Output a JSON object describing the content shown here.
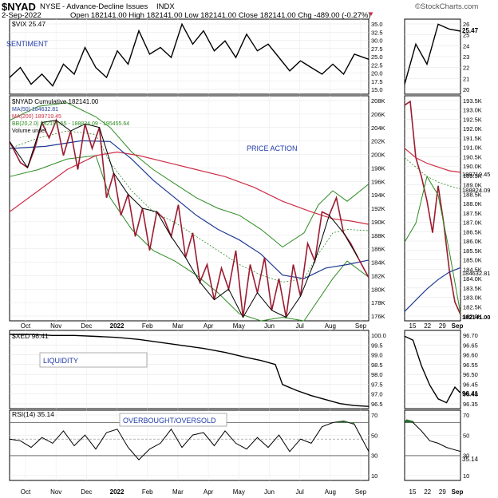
{
  "header": {
    "symbol": "$NYAD",
    "exchange": "NYSE",
    "description": "- Advance-Decline Issues",
    "type": "INDX",
    "watermark": "©StockCharts.com",
    "date": "2-Sep-2022",
    "ohlc": "Open 182141.00  High 182141.00  Low 182141.00  Close 182141.00  Chg -489.00 (-0.27%)",
    "down_arrow": "▼"
  },
  "colors": {
    "price": "#000000",
    "ma50": "#1f3a93",
    "ma200": "#cc2e45",
    "bb": "#2e8b22",
    "mid": "#2e8b22",
    "rsi_fill": "#2e6b2e",
    "label_blue": "#1f3aa8"
  },
  "panels": {
    "vix": {
      "legend": "$VIX 25.47",
      "annotation": "SENTIMENT",
      "last": "25.47"
    },
    "main": {
      "legend": {
        "title": "$NYAD Cumulative 182141.00",
        "ma50": "MA(50) 184632.81",
        "ma200": "MA(200) 189719.45",
        "bb": "BB(20,2.0) 182191.55 - 188824.09 - 195455.64",
        "volume": "Volume undef"
      },
      "annotation": "PRICE ACTION",
      "zoom_tags": {
        "upper": "189719.45",
        "mid": "188824.09",
        "ma50": "184632.81",
        "close": "182141.00"
      }
    },
    "xed": {
      "legend": "$XED 96.41",
      "annotation": "LIQUIDITY",
      "last": "96.41"
    },
    "rsi": {
      "legend": "RSI(14) 35.14",
      "annotation": "OVERBOUGHT/OVERSOLD",
      "last": "35.14"
    }
  },
  "axes": {
    "months": [
      "Oct",
      "Nov",
      "Dec",
      "2022",
      "Feb",
      "Mar",
      "Apr",
      "May",
      "Jun",
      "Jul",
      "Aug",
      "Sep"
    ],
    "zoom_x": [
      "15",
      "22",
      "29",
      "Sep"
    ],
    "vix_ticks": [
      "35.0",
      "32.5",
      "30.0",
      "27.5",
      "25.0",
      "22.5",
      "20.0",
      "17.5",
      "15.0"
    ],
    "vix_zoom_ticks": [
      "26",
      "25",
      "24",
      "23",
      "22",
      "21",
      "20"
    ],
    "main_ticks": [
      "208K",
      "206K",
      "204K",
      "202K",
      "200K",
      "198K",
      "196K",
      "194K",
      "192K",
      "190K",
      "188K",
      "186K",
      "184K",
      "182K",
      "180K",
      "178K",
      "176K"
    ],
    "main_zoom_ticks": [
      "193.5K",
      "193.0K",
      "192.5K",
      "192.0K",
      "191.5K",
      "191.0K",
      "190.5K",
      "190.0K",
      "189.5K",
      "189.0K",
      "188.5K",
      "188.0K",
      "187.5K",
      "187.0K",
      "186.5K",
      "186.0K",
      "185.5K",
      "185.0K",
      "184.5K",
      "184.0K",
      "183.5K",
      "183.0K",
      "182.5K",
      "182.0K"
    ],
    "xed_ticks": [
      "100.0",
      "99.5",
      "99.0",
      "98.5",
      "98.0",
      "97.5",
      "97.0",
      "96.5"
    ],
    "xed_zoom_ticks": [
      "96.70",
      "96.65",
      "96.60",
      "96.55",
      "96.50",
      "96.45",
      "96.40",
      "96.35"
    ],
    "rsi_ticks": [
      "70",
      "50",
      "30",
      "10"
    ],
    "rsi_zoom_ticks": [
      "70",
      "50",
      "30",
      "10"
    ]
  },
  "chart_data": [
    {
      "panel": "vix",
      "type": "line",
      "title": "$VIX",
      "ylim": [
        15,
        37.5
      ],
      "x": [
        0,
        3,
        6,
        9,
        12,
        15,
        18,
        21,
        24,
        27,
        30,
        33,
        36,
        39,
        42,
        45,
        48,
        51,
        54,
        57,
        60,
        63,
        66,
        69,
        72,
        75,
        78,
        81,
        84,
        87,
        90,
        93,
        96,
        100
      ],
      "values": [
        20,
        23,
        18,
        21,
        17.5,
        24,
        21,
        29,
        23,
        20,
        28,
        24,
        34,
        27,
        29,
        26,
        36,
        30,
        34,
        28,
        31,
        26,
        33,
        28,
        30,
        26,
        22,
        25,
        23,
        21,
        24,
        21,
        27,
        25.47
      ]
    },
    {
      "panel": "main",
      "type": "line",
      "title": "$NYAD Cumulative",
      "ylim": [
        176000,
        208000
      ],
      "series": [
        {
          "name": "$NYAD",
          "x": [
            0,
            3,
            5,
            7,
            9,
            11,
            13,
            15,
            17,
            19,
            21,
            23,
            25,
            27,
            29,
            31,
            33,
            35,
            37,
            39,
            41,
            43,
            45,
            47,
            49,
            51,
            53,
            55,
            57,
            59,
            61,
            63,
            65,
            67,
            69,
            71,
            73,
            75,
            77,
            79,
            81,
            83,
            85,
            87,
            89,
            91,
            93,
            95,
            97,
            100
          ],
          "values": [
            201500,
            198500,
            197800,
            200500,
            204200,
            202000,
            204500,
            199500,
            203000,
            197500,
            204000,
            200500,
            203500,
            193500,
            197000,
            191000,
            194000,
            188000,
            192000,
            186000,
            191500,
            190500,
            188000,
            192500,
            185000,
            188500,
            181500,
            184000,
            179000,
            183500,
            180500,
            186000,
            176500,
            184000,
            180000,
            185000,
            177500,
            182000,
            176500,
            184000,
            179500,
            187000,
            184500,
            191500,
            191000,
            193500,
            188500,
            187000,
            185000,
            182141
          ]
        },
        {
          "name": "MA(50)",
          "x": [
            0,
            10,
            20,
            28,
            34,
            40,
            46,
            52,
            58,
            64,
            70,
            76,
            82,
            88,
            94,
            100
          ],
          "values": [
            200500,
            200800,
            201600,
            201500,
            199000,
            196000,
            193500,
            191000,
            189000,
            187500,
            185500,
            182500,
            182000,
            183500,
            184000,
            184632.81
          ]
        },
        {
          "name": "MA(200)",
          "x": [
            0,
            8,
            16,
            24,
            30,
            36,
            44,
            52,
            60,
            68,
            76,
            84,
            90,
            95,
            100
          ],
          "values": [
            191500,
            194500,
            197500,
            199500,
            200000,
            199500,
            198500,
            197500,
            196500,
            195000,
            193000,
            191500,
            190500,
            190200,
            189719.45
          ]
        }
      ]
    },
    {
      "panel": "xed",
      "type": "line",
      "title": "$XED",
      "ylim": [
        96.3,
        100.2
      ],
      "x": [
        0,
        6,
        12,
        18,
        24,
        30,
        36,
        42,
        48,
        54,
        60,
        66,
        70,
        74,
        76,
        80,
        84,
        88,
        92,
        96,
        100
      ],
      "values": [
        100.0,
        100.0,
        99.95,
        99.95,
        99.9,
        99.85,
        99.75,
        99.6,
        99.45,
        99.3,
        99.1,
        98.85,
        98.7,
        98.5,
        97.5,
        97.2,
        96.95,
        96.75,
        96.55,
        96.45,
        96.41
      ]
    },
    {
      "panel": "rsi",
      "type": "line",
      "title": "RSI(14)",
      "ylim": [
        0,
        85
      ],
      "x": [
        0,
        3,
        6,
        9,
        12,
        15,
        18,
        21,
        24,
        27,
        30,
        33,
        36,
        39,
        42,
        45,
        48,
        51,
        54,
        57,
        60,
        63,
        66,
        69,
        72,
        75,
        78,
        81,
        84,
        87,
        90,
        93,
        96,
        100
      ],
      "values": [
        50,
        48,
        40,
        52,
        45,
        60,
        42,
        55,
        38,
        58,
        62,
        40,
        25,
        38,
        45,
        62,
        40,
        55,
        58,
        42,
        60,
        45,
        38,
        52,
        40,
        55,
        35,
        50,
        45,
        65,
        70,
        72,
        68,
        35.14
      ]
    }
  ]
}
